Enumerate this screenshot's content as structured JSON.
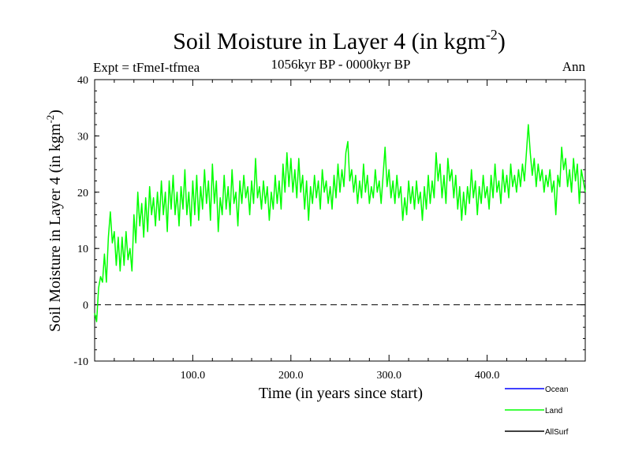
{
  "chart_data": {
    "type": "line",
    "title": "Soil Moisture in Layer 4 (in kgm",
    "title_sup": "-2",
    "title_close": ")",
    "subtitle": "1056kyr BP - 0000kyr BP",
    "expt_label": "Expt = tFmeI-tfmea",
    "season_label": "Ann",
    "xlabel": "Time (in years since start)",
    "ylabel": "Soil Moisture in Layer 4 (in kgm",
    "ylabel_sup": "-2",
    "ylabel_close": ")",
    "xlim": [
      0,
      500
    ],
    "ylim": [
      -10,
      40
    ],
    "x_ticks": [
      100,
      200,
      300,
      400
    ],
    "x_tick_labels": [
      "100.0",
      "200.0",
      "300.0",
      "400.0"
    ],
    "y_ticks": [
      -10,
      0,
      10,
      20,
      30,
      40
    ],
    "y_tick_labels": [
      "-10",
      "0",
      "10",
      "20",
      "30",
      "40"
    ],
    "zero_line": 0,
    "series": [
      {
        "name": "Ocean",
        "color": "#0000ff",
        "points": []
      },
      {
        "name": "Land",
        "color": "#00ff00",
        "points": [
          [
            0,
            -1.5
          ],
          [
            2,
            -3
          ],
          [
            4,
            3
          ],
          [
            6,
            5
          ],
          [
            8,
            4
          ],
          [
            10,
            9
          ],
          [
            12,
            4
          ],
          [
            14,
            12
          ],
          [
            16,
            16.5
          ],
          [
            18,
            11
          ],
          [
            20,
            13
          ],
          [
            22,
            7
          ],
          [
            24,
            12
          ],
          [
            26,
            6
          ],
          [
            28,
            12
          ],
          [
            30,
            7
          ],
          [
            32,
            13
          ],
          [
            34,
            8
          ],
          [
            36,
            10
          ],
          [
            38,
            6
          ],
          [
            40,
            16
          ],
          [
            42,
            11
          ],
          [
            44,
            20
          ],
          [
            46,
            14
          ],
          [
            48,
            18
          ],
          [
            50,
            12
          ],
          [
            52,
            19
          ],
          [
            54,
            13
          ],
          [
            56,
            21
          ],
          [
            58,
            16
          ],
          [
            60,
            19
          ],
          [
            62,
            14
          ],
          [
            64,
            20
          ],
          [
            66,
            15
          ],
          [
            68,
            22
          ],
          [
            70,
            16
          ],
          [
            72,
            20
          ],
          [
            74,
            13
          ],
          [
            76,
            22
          ],
          [
            78,
            17
          ],
          [
            80,
            23
          ],
          [
            82,
            16
          ],
          [
            84,
            20
          ],
          [
            86,
            14
          ],
          [
            88,
            21
          ],
          [
            90,
            17
          ],
          [
            92,
            24
          ],
          [
            94,
            16
          ],
          [
            96,
            20
          ],
          [
            98,
            14
          ],
          [
            100,
            22
          ],
          [
            102,
            16
          ],
          [
            104,
            23
          ],
          [
            106,
            15
          ],
          [
            108,
            21
          ],
          [
            110,
            17
          ],
          [
            112,
            24
          ],
          [
            114,
            18
          ],
          [
            116,
            22
          ],
          [
            118,
            15
          ],
          [
            120,
            25
          ],
          [
            122,
            18
          ],
          [
            124,
            22
          ],
          [
            126,
            13
          ],
          [
            128,
            19
          ],
          [
            130,
            16
          ],
          [
            132,
            23
          ],
          [
            134,
            17
          ],
          [
            136,
            21
          ],
          [
            138,
            16
          ],
          [
            140,
            24
          ],
          [
            142,
            18
          ],
          [
            144,
            20
          ],
          [
            146,
            14
          ],
          [
            148,
            22
          ],
          [
            150,
            18
          ],
          [
            152,
            23
          ],
          [
            154,
            19
          ],
          [
            156,
            21
          ],
          [
            158,
            16
          ],
          [
            160,
            22
          ],
          [
            162,
            18
          ],
          [
            164,
            26
          ],
          [
            166,
            19
          ],
          [
            168,
            21
          ],
          [
            170,
            17
          ],
          [
            172,
            22
          ],
          [
            174,
            18
          ],
          [
            176,
            21
          ],
          [
            178,
            15
          ],
          [
            180,
            20
          ],
          [
            182,
            17
          ],
          [
            184,
            23
          ],
          [
            186,
            18
          ],
          [
            188,
            22
          ],
          [
            190,
            17
          ],
          [
            192,
            25
          ],
          [
            194,
            20
          ],
          [
            196,
            27
          ],
          [
            198,
            21
          ],
          [
            200,
            26
          ],
          [
            202,
            20
          ],
          [
            204,
            24
          ],
          [
            206,
            19
          ],
          [
            208,
            26
          ],
          [
            210,
            20
          ],
          [
            212,
            23
          ],
          [
            214,
            17
          ],
          [
            216,
            22
          ],
          [
            218,
            15
          ],
          [
            220,
            21
          ],
          [
            222,
            18
          ],
          [
            224,
            23
          ],
          [
            226,
            19
          ],
          [
            228,
            22
          ],
          [
            230,
            17
          ],
          [
            232,
            24
          ],
          [
            234,
            20
          ],
          [
            236,
            22
          ],
          [
            238,
            18
          ],
          [
            240,
            21
          ],
          [
            242,
            17
          ],
          [
            244,
            23
          ],
          [
            246,
            19
          ],
          [
            248,
            25
          ],
          [
            250,
            20
          ],
          [
            252,
            24
          ],
          [
            254,
            21
          ],
          [
            256,
            27
          ],
          [
            258,
            29
          ],
          [
            260,
            22
          ],
          [
            262,
            24
          ],
          [
            264,
            20
          ],
          [
            266,
            23
          ],
          [
            268,
            18
          ],
          [
            270,
            22
          ],
          [
            272,
            19
          ],
          [
            274,
            25
          ],
          [
            276,
            20
          ],
          [
            278,
            23
          ],
          [
            280,
            18
          ],
          [
            282,
            21
          ],
          [
            284,
            19
          ],
          [
            286,
            24
          ],
          [
            288,
            20
          ],
          [
            290,
            22
          ],
          [
            292,
            18
          ],
          [
            294,
            23
          ],
          [
            296,
            28
          ],
          [
            298,
            21
          ],
          [
            300,
            24
          ],
          [
            302,
            19
          ],
          [
            304,
            22
          ],
          [
            306,
            18
          ],
          [
            308,
            23
          ],
          [
            310,
            19
          ],
          [
            312,
            21
          ],
          [
            314,
            15
          ],
          [
            316,
            19
          ],
          [
            318,
            16
          ],
          [
            320,
            22
          ],
          [
            322,
            18
          ],
          [
            324,
            21
          ],
          [
            326,
            17
          ],
          [
            328,
            22
          ],
          [
            330,
            18
          ],
          [
            332,
            20
          ],
          [
            334,
            15
          ],
          [
            336,
            21
          ],
          [
            338,
            17
          ],
          [
            340,
            23
          ],
          [
            342,
            18
          ],
          [
            344,
            22
          ],
          [
            346,
            19
          ],
          [
            348,
            27
          ],
          [
            350,
            22
          ],
          [
            352,
            25
          ],
          [
            354,
            19
          ],
          [
            356,
            23
          ],
          [
            358,
            18
          ],
          [
            360,
            26
          ],
          [
            362,
            22
          ],
          [
            364,
            24
          ],
          [
            366,
            19
          ],
          [
            368,
            23
          ],
          [
            370,
            17
          ],
          [
            372,
            21
          ],
          [
            374,
            15
          ],
          [
            376,
            20
          ],
          [
            378,
            16
          ],
          [
            380,
            21
          ],
          [
            382,
            18
          ],
          [
            384,
            24
          ],
          [
            386,
            19
          ],
          [
            388,
            22
          ],
          [
            390,
            16
          ],
          [
            392,
            21
          ],
          [
            394,
            18
          ],
          [
            396,
            23
          ],
          [
            398,
            19
          ],
          [
            400,
            21
          ],
          [
            402,
            17
          ],
          [
            404,
            23
          ],
          [
            406,
            19
          ],
          [
            408,
            25
          ],
          [
            410,
            20
          ],
          [
            412,
            22
          ],
          [
            414,
            18
          ],
          [
            416,
            24
          ],
          [
            418,
            20
          ],
          [
            420,
            23
          ],
          [
            422,
            19
          ],
          [
            424,
            25
          ],
          [
            426,
            21
          ],
          [
            428,
            23
          ],
          [
            430,
            20
          ],
          [
            432,
            24
          ],
          [
            434,
            21
          ],
          [
            436,
            25
          ],
          [
            438,
            22
          ],
          [
            440,
            27
          ],
          [
            442,
            32
          ],
          [
            444,
            27
          ],
          [
            446,
            23
          ],
          [
            448,
            26
          ],
          [
            450,
            21
          ],
          [
            452,
            25
          ],
          [
            454,
            22
          ],
          [
            456,
            24
          ],
          [
            458,
            20
          ],
          [
            460,
            23
          ],
          [
            462,
            21
          ],
          [
            464,
            24
          ],
          [
            466,
            20
          ],
          [
            468,
            22
          ],
          [
            470,
            16
          ],
          [
            472,
            23
          ],
          [
            474,
            21
          ],
          [
            476,
            28
          ],
          [
            478,
            24
          ],
          [
            480,
            26
          ],
          [
            482,
            21
          ],
          [
            484,
            24
          ],
          [
            486,
            20
          ],
          [
            488,
            26
          ],
          [
            490,
            22
          ],
          [
            492,
            25
          ],
          [
            494,
            18
          ],
          [
            496,
            24
          ],
          [
            498,
            22
          ],
          [
            500,
            20
          ]
        ]
      },
      {
        "name": "AllSurf",
        "color": "#000000",
        "points": []
      }
    ],
    "legend": [
      {
        "name": "Ocean",
        "color": "#0000ff"
      },
      {
        "name": "Land",
        "color": "#00ff00"
      },
      {
        "name": "AllSurf",
        "color": "#000000"
      }
    ],
    "legend_position": "bottom-right"
  }
}
